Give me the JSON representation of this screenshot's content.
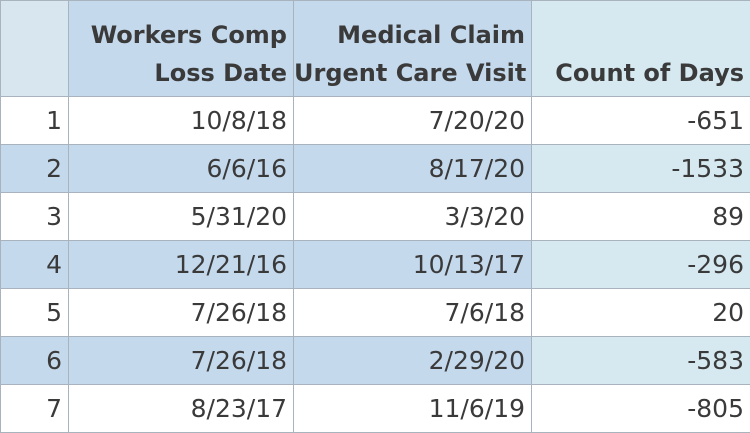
{
  "columns": {
    "workers_comp": {
      "line1": "Workers Comp",
      "line2": "Loss Date"
    },
    "medical_claim": {
      "line1": "Medical Claim",
      "line2": "Urgent Care Visit"
    },
    "count_of_days": {
      "line1": "Count of Days"
    }
  },
  "rows": [
    {
      "index": "1",
      "loss_date": "10/8/18",
      "visit_date": "7/20/20",
      "days": "-651"
    },
    {
      "index": "2",
      "loss_date": "6/6/16",
      "visit_date": "8/17/20",
      "days": "-1533"
    },
    {
      "index": "3",
      "loss_date": "5/31/20",
      "visit_date": "3/3/20",
      "days": "89"
    },
    {
      "index": "4",
      "loss_date": "12/21/16",
      "visit_date": "10/13/17",
      "days": "-296"
    },
    {
      "index": "5",
      "loss_date": "7/26/18",
      "visit_date": "7/6/18",
      "days": "20"
    },
    {
      "index": "6",
      "loss_date": "7/26/18",
      "visit_date": "2/29/20",
      "days": "-583"
    },
    {
      "index": "7",
      "loss_date": "8/23/17",
      "visit_date": "11/6/19",
      "days": "-805"
    }
  ],
  "colors": {
    "header_blue": "#c5d9ed",
    "header_light": "#d6e9f1",
    "border": "#a9b3bd",
    "text": "#3a3a3a"
  }
}
